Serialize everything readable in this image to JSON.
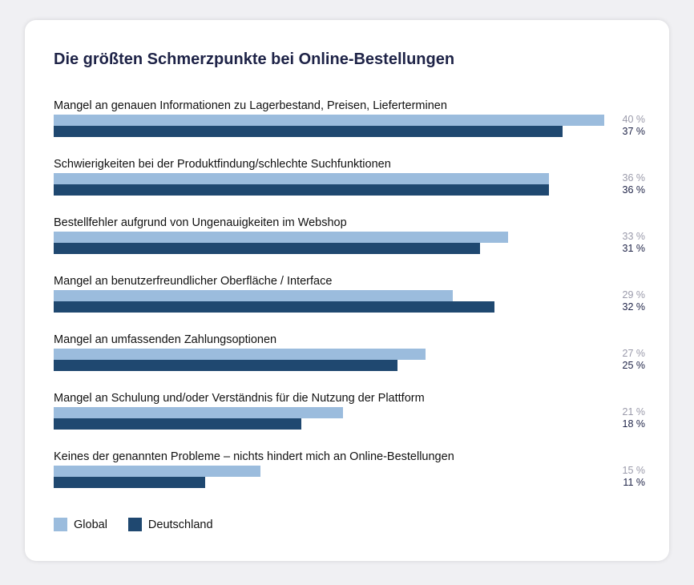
{
  "chart_data": {
    "type": "bar",
    "orientation": "horizontal",
    "title": "Die größten Schmerzpunkte bei Online-Bestellungen",
    "categories": [
      "Mangel an genauen Informationen zu Lagerbestand, Preisen, Lieferterminen",
      "Schwierigkeiten bei der Produktfindung/schlechte Suchfunktionen",
      "Bestellfehler aufgrund von Ungenauigkeiten im Webshop",
      "Mangel an benutzerfreundlicher Oberfläche / Interface",
      "Mangel an umfassenden Zahlungsoptionen",
      "Mangel an Schulung und/oder Verständnis für die Nutzung der Plattform",
      "Keines der genannten Probleme – nichts hindert mich an Online-Bestellungen"
    ],
    "series": [
      {
        "name": "Global",
        "color": "#9bbcdd",
        "values": [
          40,
          36,
          33,
          29,
          27,
          21,
          15
        ]
      },
      {
        "name": "Deutschland",
        "color": "#1f4870",
        "values": [
          37,
          36,
          31,
          32,
          25,
          18,
          11
        ]
      }
    ],
    "unit": " %",
    "xlim": [
      0,
      40
    ],
    "grid": false,
    "legend_position": "bottom-left"
  }
}
